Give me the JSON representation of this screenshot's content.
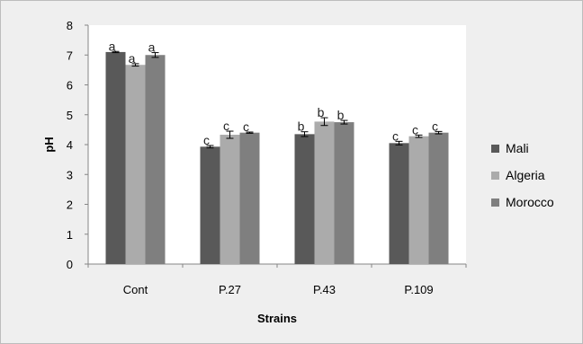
{
  "chart_data": {
    "type": "bar",
    "title": "",
    "xlabel": "Strains",
    "ylabel": "pH",
    "ylim": [
      0,
      8
    ],
    "yticks": [
      0,
      1,
      2,
      3,
      4,
      5,
      6,
      7,
      8
    ],
    "grid": false,
    "legend_position": "right",
    "categories": [
      "Cont",
      "P.27",
      "P.43",
      "P.109"
    ],
    "series": [
      {
        "name": "Mali",
        "color": "#595959",
        "values": [
          7.1,
          3.93,
          4.35,
          4.05
        ],
        "errors": [
          0.02,
          0.04,
          0.08,
          0.06
        ],
        "letters": [
          "a",
          "c",
          "b",
          "c"
        ]
      },
      {
        "name": "Algeria",
        "color": "#ababab",
        "values": [
          6.67,
          4.33,
          4.77,
          4.28
        ],
        "errors": [
          0.04,
          0.12,
          0.13,
          0.04
        ],
        "letters": [
          "a",
          "c",
          "b",
          "c"
        ]
      },
      {
        "name": "Morocco",
        "color": "#7f7f7f",
        "values": [
          7.0,
          4.4,
          4.75,
          4.4
        ],
        "errors": [
          0.08,
          0.02,
          0.06,
          0.04
        ],
        "letters": [
          "a",
          "c",
          "b",
          "c"
        ]
      }
    ]
  }
}
